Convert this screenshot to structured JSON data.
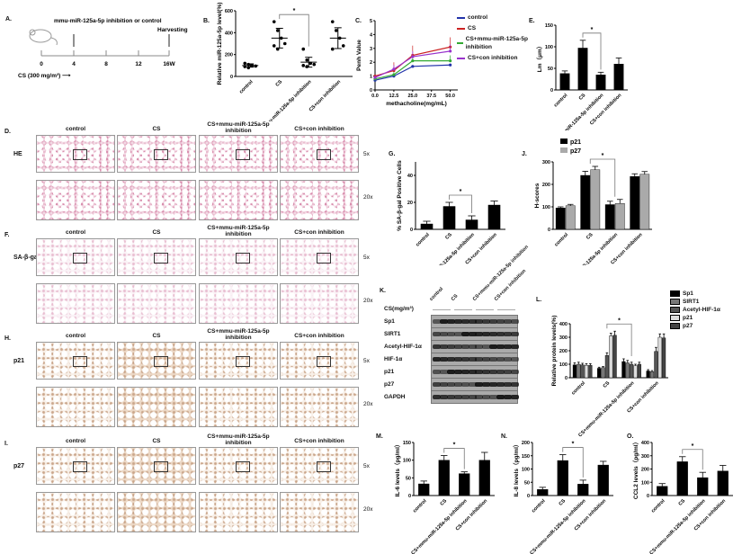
{
  "panels": {
    "A": "A.",
    "B": "B.",
    "C": "C.",
    "D": "D.",
    "E": "E.",
    "F": "F.",
    "G": "G.",
    "H": "H.",
    "I": "I.",
    "J": "J.",
    "K": "K.",
    "L": "L.",
    "M": "M.",
    "N": "N.",
    "O": "O."
  },
  "timeline": {
    "treatment": "mmu-miR-125a-5p inhibition or control",
    "harvest": "Harvesting",
    "ticks": [
      "0",
      "4",
      "8",
      "12",
      "16W"
    ],
    "exposure": "CS (300 mg/m³) ⟶"
  },
  "groups": [
    "control",
    "CS",
    "CS+mmu-miR-125a-5p inhibition",
    "CS+con inhibition"
  ],
  "histology": {
    "rows": [
      {
        "label": "HE",
        "stain": "he"
      },
      {
        "label": "SA-β-gal",
        "stain": "sa"
      },
      {
        "label": "p21",
        "stain": "ihc"
      },
      {
        "label": "p27",
        "stain": "ihc"
      }
    ],
    "magnifications": [
      "5x",
      "20x"
    ]
  },
  "blot": {
    "header": "CS(mg/m³)",
    "lanes": [
      "control",
      "CS",
      "CS+mmu-miR-125a-5p inhibition",
      "CS+con inhibition"
    ],
    "rows": [
      "Sp1",
      "SIRT1",
      "Acetyl-HIF-1α",
      "HIF-1α",
      "p21",
      "p27",
      "GAPDH"
    ]
  },
  "chart_data": [
    {
      "panel": "B",
      "type": "scatter",
      "categories": [
        "control",
        "CS",
        "CS+mmu-miR-125a-5p inhibition",
        "CS+con inhibition"
      ],
      "points": [
        [
          120,
          110,
          100,
          95,
          90,
          80
        ],
        [
          500,
          420,
          350,
          300,
          280,
          250
        ],
        [
          250,
          150,
          120,
          110,
          100,
          90
        ],
        [
          500,
          420,
          350,
          280,
          250
        ]
      ],
      "means": [
        100,
        350,
        130,
        350
      ],
      "sd": [
        15,
        90,
        45,
        95
      ],
      "ylabel": "Relative miR-125a-5p level(%)",
      "ylim": [
        0,
        600
      ],
      "yticks": [
        "0",
        "200",
        "400",
        "600"
      ],
      "significance": {
        "from": 1,
        "to": 2,
        "label": "*"
      }
    },
    {
      "panel": "C",
      "type": "line",
      "x": [
        0,
        12.5,
        25,
        50
      ],
      "xlim": [
        0,
        55
      ],
      "xticks": [
        "0.0",
        "12.5",
        "25.0",
        "37.5",
        "50.0"
      ],
      "xlabel": "methacholine(mg/mL)",
      "ylabel": "Penh Value",
      "ylim": [
        0,
        5
      ],
      "yticks": [
        "0",
        "1",
        "2",
        "3",
        "4",
        "5"
      ],
      "series": [
        {
          "name": "control",
          "color": "#2233aa",
          "values": [
            0.7,
            1.0,
            1.7,
            1.8
          ],
          "errors": [
            0.1,
            0.1,
            0.1,
            0.1
          ]
        },
        {
          "name": "CS",
          "color": "#cc2222",
          "values": [
            1.0,
            1.4,
            2.5,
            3.1
          ],
          "errors": [
            0.1,
            0.6,
            0.7,
            0.7
          ]
        },
        {
          "name": "CS+mmu-miR-125a-5p inhibition",
          "color": "#33aa33",
          "values": [
            0.8,
            1.1,
            2.1,
            2.1
          ],
          "errors": [
            0.1,
            0.2,
            0.3,
            0.4
          ]
        },
        {
          "name": "CS+con inhibition",
          "color": "#9933cc",
          "values": [
            0.9,
            1.5,
            2.4,
            2.8
          ],
          "errors": [
            0.1,
            0.3,
            0.4,
            0.5
          ]
        }
      ]
    },
    {
      "panel": "E",
      "type": "bar",
      "categories": [
        "control",
        "CS",
        "CS+mmu-miR-125a-5p inhibition",
        "CS+con inhibition"
      ],
      "series": [
        {
          "color": "#000000",
          "values": [
            38,
            97,
            35,
            60
          ],
          "errors": [
            6,
            18,
            6,
            14
          ]
        }
      ],
      "ylabel": "Lm（μm）",
      "ylim": [
        0,
        150
      ],
      "yticks": [
        "0",
        "50",
        "100",
        "150"
      ],
      "significance": {
        "from": 1,
        "to": 2,
        "label": "*"
      }
    },
    {
      "panel": "G",
      "type": "bar",
      "categories": [
        "control",
        "CS",
        "CS+mmu-miR-125a-5p inhibition",
        "CS+con inhibition"
      ],
      "series": [
        {
          "color": "#000000",
          "values": [
            4,
            17,
            7,
            18
          ],
          "errors": [
            2,
            3,
            3,
            3
          ]
        }
      ],
      "ylabel": "% SA-β-gal Positive Cells",
      "ylim": [
        0,
        50
      ],
      "yticks": [
        "0",
        "20",
        "40"
      ],
      "ytickvals": [
        0,
        20,
        40
      ],
      "significance": {
        "from": 1,
        "to": 2,
        "label": "*"
      }
    },
    {
      "panel": "J",
      "type": "bar",
      "categories": [
        "control",
        "CS",
        "CS+mmu-miR-125a-5p inhibition",
        "CS+con inhibition"
      ],
      "series": [
        {
          "name": "p21",
          "color": "#000000",
          "values": [
            95,
            240,
            110,
            235
          ],
          "errors": [
            5,
            18,
            15,
            12
          ]
        },
        {
          "name": "p27",
          "color": "#aaaaaa",
          "values": [
            105,
            265,
            115,
            245
          ],
          "errors": [
            6,
            15,
            18,
            12
          ]
        }
      ],
      "ylabel": "H-scores",
      "ylim": [
        0,
        300
      ],
      "yticks": [
        "0",
        "100",
        "200",
        "300"
      ],
      "significance": {
        "from": 1,
        "to": 2,
        "label": "*"
      },
      "legend": "top-left"
    },
    {
      "panel": "L",
      "type": "bar",
      "categories": [
        "control",
        "CS",
        "CS+mmu-miR-125a-5p inhibition",
        "CS+con inhibition"
      ],
      "series": [
        {
          "name": "Sp1",
          "color": "#000000",
          "values": [
            95,
            70,
            120,
            50
          ],
          "errors": [
            15,
            8,
            20,
            10
          ]
        },
        {
          "name": "SIRT1",
          "color": "#777777",
          "values": [
            100,
            75,
            110,
            45
          ],
          "errors": [
            15,
            8,
            18,
            8
          ]
        },
        {
          "name": "Acetyl-HIF-1α",
          "color": "#555555",
          "values": [
            95,
            165,
            100,
            195
          ],
          "errors": [
            12,
            20,
            15,
            30
          ]
        },
        {
          "name": "p21",
          "color": "#dddddd",
          "values": [
            92,
            310,
            90,
            300
          ],
          "errors": [
            12,
            20,
            10,
            25
          ]
        },
        {
          "name": "p27",
          "color": "#444444",
          "values": [
            92,
            315,
            100,
            295
          ],
          "errors": [
            12,
            30,
            15,
            30
          ]
        }
      ],
      "ylabel": "Relative protein levels(%)",
      "ylim": [
        0,
        400
      ],
      "yticks": [
        "0",
        "100",
        "200",
        "300",
        "400"
      ],
      "significance": {
        "from": 1,
        "to": 2,
        "label": "*"
      },
      "legend": "right"
    },
    {
      "panel": "M",
      "type": "bar",
      "categories": [
        "control",
        "CS",
        "CS+mmu-miR-125a-5p inhibition",
        "CS+con inhibition"
      ],
      "series": [
        {
          "color": "#000000",
          "values": [
            33,
            100,
            62,
            100
          ],
          "errors": [
            8,
            13,
            5,
            22
          ]
        }
      ],
      "ylabel": "IL-6 levels（pg/ml）",
      "ylim": [
        0,
        150
      ],
      "yticks": [
        "0",
        "50",
        "100",
        "150"
      ],
      "significance": {
        "from": 1,
        "to": 2,
        "label": "*"
      }
    },
    {
      "panel": "N",
      "type": "bar",
      "categories": [
        "control",
        "CS",
        "CS+mmu-miR-125a-5p inhibition",
        "CS+con inhibition"
      ],
      "series": [
        {
          "color": "#000000",
          "values": [
            23,
            132,
            43,
            115
          ],
          "errors": [
            8,
            22,
            15,
            14
          ]
        }
      ],
      "ylabel": "IL-8 levels（pg/ml）",
      "ylim": [
        0,
        200
      ],
      "yticks": [
        "0",
        "50",
        "100",
        "150",
        "200"
      ],
      "significance": {
        "from": 1,
        "to": 2,
        "label": "*"
      }
    },
    {
      "panel": "O",
      "type": "bar",
      "categories": [
        "control",
        "CS",
        "CS+mmu-miR-125a-5p inhibition",
        "CS+con inhibition"
      ],
      "series": [
        {
          "color": "#000000",
          "values": [
            70,
            255,
            135,
            185
          ],
          "errors": [
            20,
            38,
            40,
            42
          ]
        }
      ],
      "ylabel": "CCL2 levels（pg/ml）",
      "ylim": [
        0,
        400
      ],
      "yticks": [
        "0",
        "100",
        "200",
        "300",
        "400"
      ],
      "significance": {
        "from": 1,
        "to": 2,
        "label": "*"
      }
    }
  ]
}
